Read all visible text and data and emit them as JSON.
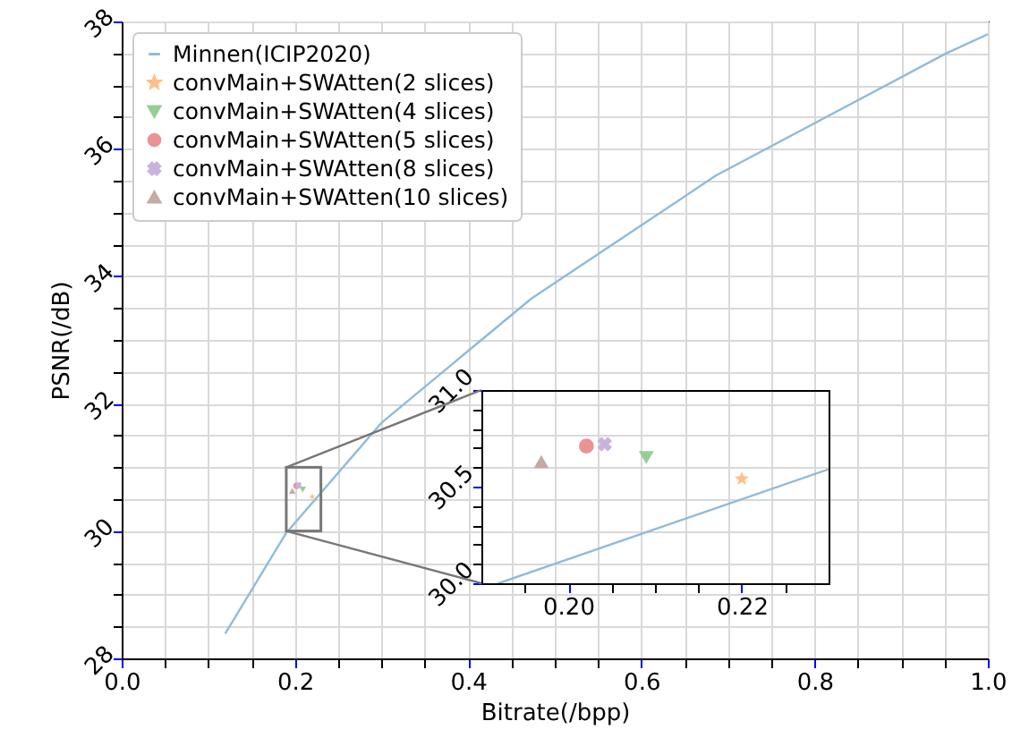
{
  "chart_data": [
    {
      "type": "line",
      "xlabel": "Bitrate(/bpp)",
      "ylabel": "PSNR(/dB)",
      "xlim": [
        0,
        1
      ],
      "ylim": [
        28,
        38
      ],
      "xticks": [
        {
          "value": 0,
          "label": "0.0"
        },
        {
          "value": 0.05,
          "label": null
        },
        {
          "value": 0.1,
          "label": null
        },
        {
          "value": 0.15,
          "label": null
        },
        0.2,
        {
          "value": 0.25,
          "label": null
        },
        {
          "value": 0.3,
          "label": null
        },
        {
          "value": 0.35,
          "label": null
        },
        0.4,
        {
          "value": 0.45,
          "label": null
        },
        {
          "value": 0.5,
          "label": null
        },
        {
          "value": 0.55,
          "label": null
        },
        0.6,
        {
          "value": 0.65,
          "label": null
        },
        {
          "value": 0.7,
          "label": null
        },
        {
          "value": 0.75,
          "label": null
        },
        0.8,
        {
          "value": 0.85,
          "label": null
        },
        {
          "value": 0.9,
          "label": null
        },
        {
          "value": 0.95,
          "label": null
        },
        {
          "value": 1,
          "label": "1.0"
        }
      ],
      "yticks": [
        28,
        {
          "value": 28.5,
          "label": null
        },
        {
          "value": 29,
          "label": null
        },
        {
          "value": 29.5,
          "label": null
        },
        30,
        {
          "value": 30.5,
          "label": null
        },
        {
          "value": 31,
          "label": null
        },
        {
          "value": 31.5,
          "label": null
        },
        32,
        {
          "value": 32.5,
          "label": null
        },
        {
          "value": 33,
          "label": null
        },
        {
          "value": 33.5,
          "label": null
        },
        34,
        {
          "value": 34.5,
          "label": null
        },
        {
          "value": 35,
          "label": null
        },
        {
          "value": 35.5,
          "label": null
        },
        36,
        {
          "value": 36.5,
          "label": null
        },
        {
          "value": 37,
          "label": null
        },
        {
          "value": 37.5,
          "label": null
        },
        38
      ],
      "grid": true,
      "legend": "top left",
      "series": [
        {
          "name": "Minnen(ICIP2020)",
          "color": "#8fbbd9",
          "x": [
            0.12,
            0.19,
            0.3,
            0.473,
            0.686,
            0.952,
            1.0
          ],
          "values": [
            28.4,
            29.97,
            31.7,
            33.65,
            35.58,
            37.5,
            37.8
          ]
        },
        {
          "name": "convMain+SWAtten(2 slices)",
          "type": "scatter",
          "marker": "star",
          "color": "#ffbf86",
          "x": [
            0.22
          ],
          "values": [
            30.54
          ]
        },
        {
          "name": "convMain+SWAtten(4 slices)",
          "type": "scatter",
          "marker": "triangle-down",
          "color": "#95cf95",
          "x": [
            0.209
          ],
          "values": [
            30.65
          ]
        },
        {
          "name": "convMain+SWAtten(5 slices)",
          "type": "scatter",
          "marker": "circle",
          "color": "#ea9393",
          "x": [
            0.2021
          ],
          "values": [
            30.71
          ]
        },
        {
          "name": "convMain+SWAtten(8 slices)",
          "type": "scatter",
          "marker": "cross",
          "color": "#c9b3de",
          "x": [
            0.2042
          ],
          "values": [
            30.72
          ]
        },
        {
          "name": "convMain+SWAtten(10 slices)",
          "type": "scatter",
          "marker": "triangle",
          "color": "#c5aaa5",
          "x": [
            0.1969
          ],
          "values": [
            30.63
          ]
        }
      ]
    },
    {
      "type": "line",
      "xlim": [
        0.19,
        0.23
      ],
      "ylim": [
        30,
        31
      ],
      "xticks": [
        {
          "value": 0.195,
          "label": null
        },
        {
          "value": 0.2,
          "label": "0.20"
        },
        {
          "value": 0.205,
          "label": null
        },
        {
          "value": 0.21,
          "label": null
        },
        {
          "value": 0.215,
          "label": null
        },
        {
          "value": 0.22,
          "label": "0.22"
        },
        {
          "value": 0.225,
          "label": null
        }
      ],
      "yticks": [
        {
          "value": 30,
          "label": "30.0"
        },
        {
          "value": 30.1,
          "label": null
        },
        {
          "value": 30.2,
          "label": null
        },
        {
          "value": 30.3,
          "label": null
        },
        {
          "value": 30.4,
          "label": null
        },
        30.5,
        {
          "value": 30.6,
          "label": null
        },
        {
          "value": 30.7,
          "label": null
        },
        {
          "value": 30.8,
          "label": null
        },
        {
          "value": 30.9,
          "label": null
        },
        {
          "value": 31,
          "label": "31.0"
        }
      ],
      "series": [
        {
          "color": "#8fbbd9",
          "x": [
            0.192,
            0.23
          ],
          "values": [
            30.0,
            30.59
          ]
        },
        {
          "type": "scatter",
          "marker": "star",
          "color": "#ffbf86",
          "x": [
            0.22
          ],
          "values": [
            30.54
          ]
        },
        {
          "type": "scatter",
          "marker": "triangle-down",
          "color": "#95cf95",
          "x": [
            0.209
          ],
          "values": [
            30.65
          ]
        },
        {
          "type": "scatter",
          "marker": "circle",
          "color": "#ea9393",
          "x": [
            0.2021
          ],
          "values": [
            30.71
          ]
        },
        {
          "type": "scatter",
          "marker": "cross",
          "color": "#c9b3de",
          "x": [
            0.2042
          ],
          "values": [
            30.72
          ]
        },
        {
          "type": "scatter",
          "marker": "triangle",
          "color": "#c5aaa5",
          "x": [
            0.1969
          ],
          "values": [
            30.63
          ]
        }
      ]
    }
  ]
}
